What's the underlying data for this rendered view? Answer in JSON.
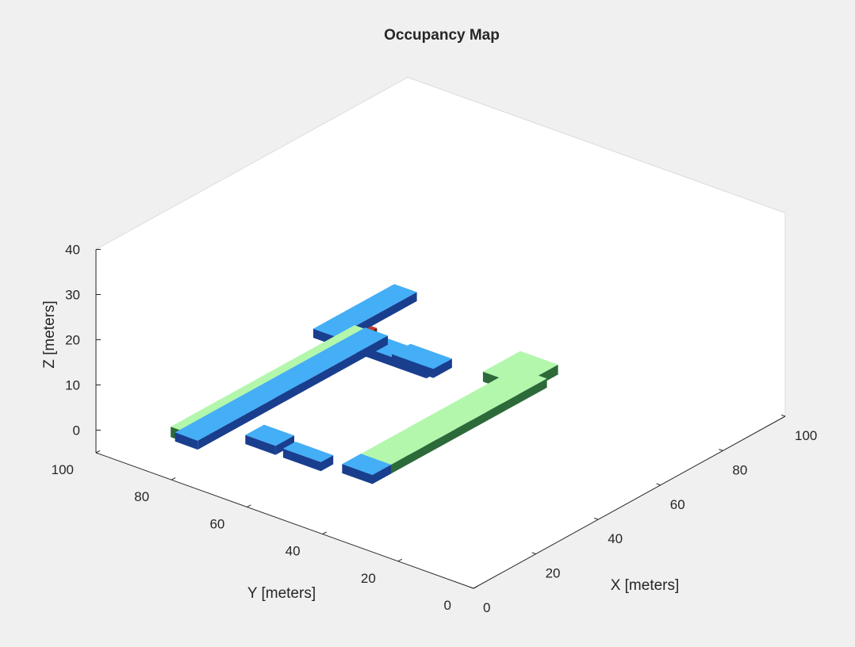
{
  "chart_data": {
    "type": "3d-voxel",
    "title": "Occupancy Map",
    "xlabel": "X [meters]",
    "ylabel": "Y [meters]",
    "zlabel": "Z [meters]",
    "xlim": [
      0,
      100
    ],
    "ylim": [
      0,
      100
    ],
    "zlim": [
      -5,
      40
    ],
    "xticks": [
      "0",
      "20",
      "40",
      "60",
      "80",
      "100"
    ],
    "yticks": [
      "0",
      "20",
      "40",
      "60",
      "80",
      "100"
    ],
    "zticks": [
      "0",
      "10",
      "20",
      "30",
      "40"
    ],
    "grid": false,
    "colors": {
      "figure_background": "#f0f0f0",
      "axes_background": "#ffffff",
      "box_edge": "#dcdcdc",
      "axis_line": "#262626",
      "blue_top": "#44aef7",
      "blue_side": "#1a3e8e",
      "green_top": "#b3f7ad",
      "green_side": "#2c6a3a",
      "cyan_top": "#33e0f0",
      "dark_stripe": "#3c5a30",
      "red_voxel": "#c0392b"
    }
  }
}
